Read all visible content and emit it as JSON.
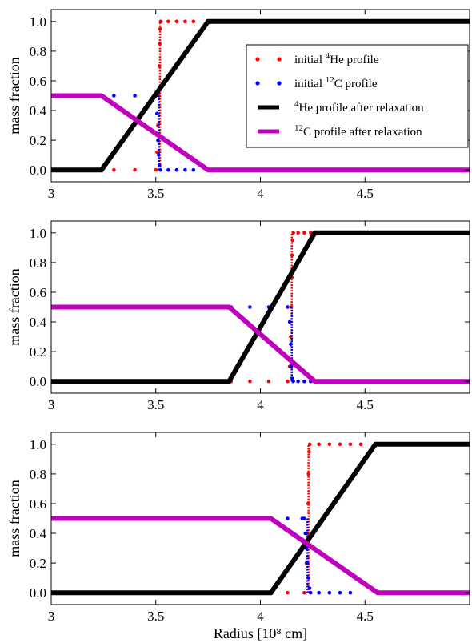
{
  "chart_data": [
    {
      "type": "line",
      "ylabel": "mass fraction",
      "xlabel": "",
      "xlim": [
        3.0,
        5.0
      ],
      "ylim": [
        -0.08,
        1.08
      ],
      "xticks": [
        {
          "value": 3.0,
          "label": "3"
        },
        {
          "value": 3.5,
          "label": "3.5"
        },
        {
          "value": 4.0,
          "label": "4"
        },
        {
          "value": 4.5,
          "label": "4.5"
        }
      ],
      "yticks": [
        {
          "value": 0.0,
          "label": "0.0"
        },
        {
          "value": 0.2,
          "label": "0.2"
        },
        {
          "value": 0.4,
          "label": "0.4"
        },
        {
          "value": 0.6,
          "label": "0.6"
        },
        {
          "value": 0.8,
          "label": "0.8"
        },
        {
          "value": 1.0,
          "label": "1.0"
        }
      ],
      "legend": {
        "placement": "right",
        "entries": [
          {
            "pre": "initial ",
            "sup": "4",
            "post": "He profile",
            "color": "#ff0000",
            "marker": "dot"
          },
          {
            "pre": "initial ",
            "sup": "12",
            "post": "C profile",
            "color": "#0000ff",
            "marker": "dot"
          },
          {
            "pre": "",
            "sup": "4",
            "post": "He profile after relaxation",
            "color": "#000000",
            "marker": "line"
          },
          {
            "pre": "",
            "sup": "12",
            "post": "C profile after relaxation",
            "color": "#bf00bf",
            "marker": "line"
          }
        ]
      },
      "series": [
        {
          "style": "dots",
          "color": "#ff0000",
          "points": [
            [
              3.3,
              0
            ],
            [
              3.4,
              0
            ],
            [
              3.5,
              0
            ],
            [
              3.506,
              0.12
            ],
            [
              3.51,
              0.3
            ],
            [
              3.514,
              0.5
            ],
            [
              3.517,
              0.7
            ],
            [
              3.519,
              0.85
            ],
            [
              3.521,
              0.95
            ],
            [
              3.524,
              1
            ],
            [
              3.56,
              1
            ],
            [
              3.6,
              1
            ],
            [
              3.64,
              1
            ],
            [
              3.68,
              1
            ]
          ],
          "dense_step": {
            "x": 3.52,
            "from": 0,
            "to": 1
          }
        },
        {
          "style": "dots",
          "color": "#0000ff",
          "points": [
            [
              3.3,
              0.5
            ],
            [
              3.4,
              0.5
            ],
            [
              3.5,
              0.5
            ],
            [
              3.506,
              0.38
            ],
            [
              3.51,
              0.2
            ],
            [
              3.514,
              0.1
            ],
            [
              3.518,
              0.03
            ],
            [
              3.522,
              0
            ],
            [
              3.56,
              0
            ],
            [
              3.6,
              0
            ],
            [
              3.64,
              0
            ],
            [
              3.68,
              0
            ]
          ],
          "dense_step": {
            "x": 3.515,
            "from": 0.5,
            "to": 0
          }
        },
        {
          "style": "line",
          "color": "#000000",
          "points": [
            [
              3.0,
              0
            ],
            [
              3.24,
              0
            ],
            [
              3.75,
              1
            ],
            [
              5.0,
              1
            ]
          ]
        },
        {
          "style": "line",
          "color": "#bf00bf",
          "points": [
            [
              3.0,
              0.5
            ],
            [
              3.24,
              0.5
            ],
            [
              3.75,
              0
            ],
            [
              5.0,
              0
            ]
          ]
        }
      ]
    },
    {
      "type": "line",
      "ylabel": "mass fraction",
      "xlabel": "",
      "xlim": [
        3.0,
        5.0
      ],
      "ylim": [
        -0.08,
        1.08
      ],
      "xticks": [
        {
          "value": 3.0,
          "label": "3"
        },
        {
          "value": 3.5,
          "label": "3.5"
        },
        {
          "value": 4.0,
          "label": "4"
        },
        {
          "value": 4.5,
          "label": "4.5"
        }
      ],
      "yticks": [
        {
          "value": 0.0,
          "label": "0.0"
        },
        {
          "value": 0.2,
          "label": "0.2"
        },
        {
          "value": 0.4,
          "label": "0.4"
        },
        {
          "value": 0.6,
          "label": "0.6"
        },
        {
          "value": 0.8,
          "label": "0.8"
        },
        {
          "value": 1.0,
          "label": "1.0"
        }
      ],
      "series": [
        {
          "style": "dots",
          "color": "#ff0000",
          "points": [
            [
              3.86,
              0
            ],
            [
              3.95,
              0
            ],
            [
              4.04,
              0
            ],
            [
              4.13,
              0
            ],
            [
              4.14,
              0.1
            ],
            [
              4.145,
              0.3
            ],
            [
              4.148,
              0.5
            ],
            [
              4.15,
              0.7
            ],
            [
              4.152,
              0.85
            ],
            [
              4.154,
              0.95
            ],
            [
              4.157,
              1
            ],
            [
              4.18,
              1
            ],
            [
              4.21,
              1
            ],
            [
              4.24,
              1
            ]
          ],
          "dense_step": {
            "x": 4.15,
            "from": 0,
            "to": 1
          }
        },
        {
          "style": "dots",
          "color": "#0000ff",
          "points": [
            [
              3.86,
              0.5
            ],
            [
              3.95,
              0.5
            ],
            [
              4.04,
              0.5
            ],
            [
              4.13,
              0.5
            ],
            [
              4.14,
              0.4
            ],
            [
              4.145,
              0.25
            ],
            [
              4.148,
              0.1
            ],
            [
              4.152,
              0.02
            ],
            [
              4.157,
              0
            ],
            [
              4.18,
              0
            ],
            [
              4.21,
              0
            ],
            [
              4.24,
              0
            ]
          ],
          "dense_step": {
            "x": 4.15,
            "from": 0.5,
            "to": 0
          }
        },
        {
          "style": "line",
          "color": "#000000",
          "points": [
            [
              3.0,
              0
            ],
            [
              3.85,
              0
            ],
            [
              4.26,
              1
            ],
            [
              5.0,
              1
            ]
          ]
        },
        {
          "style": "line",
          "color": "#bf00bf",
          "points": [
            [
              3.0,
              0.5
            ],
            [
              3.85,
              0.5
            ],
            [
              4.26,
              0
            ],
            [
              5.0,
              0
            ]
          ]
        }
      ]
    },
    {
      "type": "line",
      "ylabel": "mass fraction",
      "xlabel": "Radius [10⁸ cm]",
      "xlim": [
        3.0,
        5.0
      ],
      "ylim": [
        -0.08,
        1.08
      ],
      "xticks": [
        {
          "value": 3.0,
          "label": "3"
        },
        {
          "value": 3.5,
          "label": "3.5"
        },
        {
          "value": 4.0,
          "label": "4"
        },
        {
          "value": 4.5,
          "label": "4.5"
        }
      ],
      "yticks": [
        {
          "value": 0.0,
          "label": "0.0"
        },
        {
          "value": 0.2,
          "label": "0.2"
        },
        {
          "value": 0.4,
          "label": "0.4"
        },
        {
          "value": 0.6,
          "label": "0.6"
        },
        {
          "value": 0.8,
          "label": "0.8"
        },
        {
          "value": 1.0,
          "label": "1.0"
        }
      ],
      "series": [
        {
          "style": "dots",
          "color": "#ff0000",
          "points": [
            [
              4.13,
              0
            ],
            [
              4.21,
              0
            ],
            [
              4.22,
              0.2
            ],
            [
              4.225,
              0.4
            ],
            [
              4.228,
              0.6
            ],
            [
              4.23,
              0.8
            ],
            [
              4.233,
              0.95
            ],
            [
              4.236,
              1
            ],
            [
              4.28,
              1
            ],
            [
              4.33,
              1
            ],
            [
              4.38,
              1
            ],
            [
              4.43,
              1
            ],
            [
              4.48,
              1
            ]
          ],
          "dense_step": {
            "x": 4.23,
            "from": 0,
            "to": 1
          }
        },
        {
          "style": "dots",
          "color": "#0000ff",
          "points": [
            [
              4.13,
              0.5
            ],
            [
              4.2,
              0.5
            ],
            [
              4.21,
              0.5
            ],
            [
              4.215,
              0.4
            ],
            [
              4.22,
              0.3
            ],
            [
              4.225,
              0.2
            ],
            [
              4.23,
              0.1
            ],
            [
              4.235,
              0.03
            ],
            [
              4.24,
              0
            ],
            [
              4.28,
              0
            ],
            [
              4.33,
              0
            ],
            [
              4.38,
              0
            ],
            [
              4.43,
              0
            ]
          ],
          "dense_step": {
            "x": 4.225,
            "from": 0.5,
            "to": 0
          }
        },
        {
          "style": "line",
          "color": "#000000",
          "points": [
            [
              3.0,
              0
            ],
            [
              4.05,
              0
            ],
            [
              4.55,
              1
            ],
            [
              5.0,
              1
            ]
          ]
        },
        {
          "style": "line",
          "color": "#bf00bf",
          "points": [
            [
              3.0,
              0.5
            ],
            [
              4.05,
              0.5
            ],
            [
              4.56,
              0
            ],
            [
              5.0,
              0
            ]
          ]
        }
      ]
    }
  ]
}
